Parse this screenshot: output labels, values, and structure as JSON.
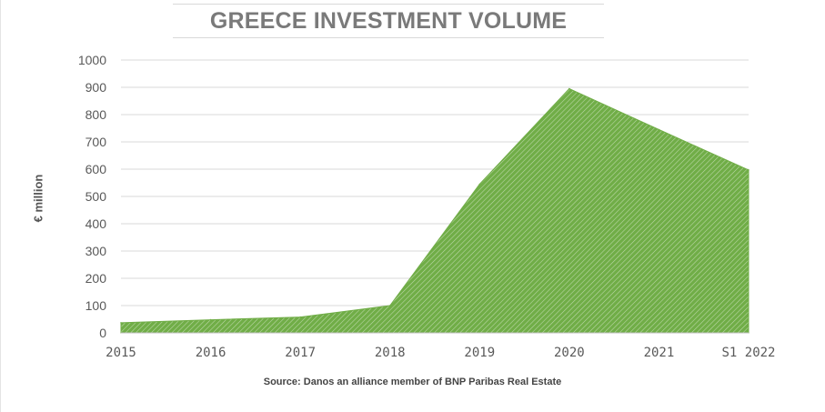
{
  "chart_data": {
    "type": "area",
    "title": "GREECE INVESTMENT VOLUME",
    "ylabel": "€ million",
    "xlabel": "",
    "categories": [
      "2015",
      "2016",
      "2017",
      "2018",
      "2019",
      "2020",
      "2021",
      "S1 2022"
    ],
    "values": [
      37,
      48,
      58,
      100,
      545,
      895,
      745,
      597
    ],
    "ylim": [
      0,
      1000
    ],
    "yticks": [
      0,
      100,
      200,
      300,
      400,
      500,
      600,
      700,
      800,
      900,
      1000
    ],
    "grid": true,
    "legend": "none",
    "colors": {
      "fill": "#70ad47",
      "stripe": "#ffffff",
      "grid": "#d9d9d9",
      "axis": "#bfbfbf"
    }
  },
  "source": "Source: Danos an alliance member of BNP Paribas Real Estate"
}
